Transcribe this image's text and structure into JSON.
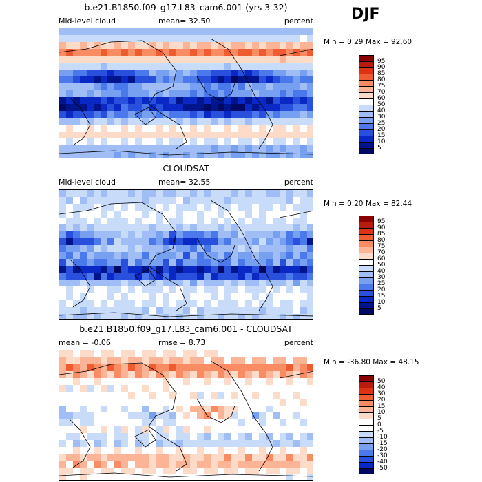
{
  "season": "DJF",
  "panels": [
    {
      "title": "b.e21.B1850.f09_g17.L83_cam6.001 (yrs 3-32)",
      "left_label": "Mid-level cloud",
      "mean_text": "mean=  32.50",
      "units": "percent",
      "minmax": "Min =   0.29 Max =  92.60",
      "colorbar_labels": [
        "95",
        "90",
        "85",
        "80",
        "75",
        "70",
        "60",
        "50",
        "40",
        "30",
        "25",
        "20",
        "15",
        "10",
        "5"
      ],
      "map_kind": "model"
    },
    {
      "title": "CLOUDSAT",
      "left_label": "Mid-level cloud",
      "mean_text": "mean=  32.55",
      "units": "percent",
      "minmax": "Min =   0.20 Max =  82.44",
      "colorbar_labels": [
        "95",
        "90",
        "85",
        "80",
        "75",
        "70",
        "60",
        "50",
        "40",
        "30",
        "25",
        "20",
        "15",
        "10",
        "5"
      ],
      "map_kind": "obs"
    },
    {
      "title": "b.e21.B1850.f09_g17.L83_cam6.001 - CLOUDSAT",
      "left_label": "mean =  -0.06",
      "mean_text": "rmse =   8.73",
      "units": "percent",
      "minmax": "Min = -36.80 Max =  48.15",
      "colorbar_labels": [
        "50",
        "40",
        "30",
        "20",
        "15",
        "10",
        "5",
        "0",
        "-5",
        "-10",
        "-15",
        "-20",
        "-30",
        "-40",
        "-50"
      ],
      "map_kind": "diff"
    }
  ],
  "colors": {
    "seq": [
      "#8b0000",
      "#b81c0c",
      "#de3214",
      "#f05c32",
      "#fa8c64",
      "#fcb496",
      "#fcdcc8",
      "#ffffff",
      "#c8dcfa",
      "#a0bef5",
      "#78a0f0",
      "#4b78eb",
      "#2850dc",
      "#0a28c3",
      "#00148c",
      "#000a64"
    ],
    "div": [
      "#8b0000",
      "#b81c0c",
      "#de3214",
      "#f05c32",
      "#fa8c64",
      "#fcb496",
      "#fcdcc8",
      "#ffffff",
      "#ffffff",
      "#c8dcfa",
      "#a0bef5",
      "#78a0f0",
      "#4b78eb",
      "#2850dc",
      "#0a28c3",
      "#000a64"
    ]
  },
  "chart_data": [
    {
      "type": "heatmap",
      "title": "b.e21.B1850.f09_g17.L83_cam6.001 (yrs 3-32)",
      "variable": "Mid-level cloud",
      "units": "percent",
      "mean": 32.5,
      "min": 0.29,
      "max": 92.6,
      "contour_levels": [
        5,
        10,
        15,
        20,
        25,
        30,
        40,
        50,
        60,
        70,
        75,
        80,
        85,
        90,
        95
      ],
      "x_range_lon": [
        0,
        360
      ],
      "y_range_lat": [
        -90,
        90
      ]
    },
    {
      "type": "heatmap",
      "title": "CLOUDSAT",
      "variable": "Mid-level cloud",
      "units": "percent",
      "mean": 32.55,
      "min": 0.2,
      "max": 82.44,
      "contour_levels": [
        5,
        10,
        15,
        20,
        25,
        30,
        40,
        50,
        60,
        70,
        75,
        80,
        85,
        90,
        95
      ],
      "x_range_lon": [
        0,
        360
      ],
      "y_range_lat": [
        -90,
        90
      ]
    },
    {
      "type": "heatmap",
      "title": "b.e21.B1850.f09_g17.L83_cam6.001 - CLOUDSAT",
      "units": "percent",
      "mean": -0.06,
      "rmse": 8.73,
      "min": -36.8,
      "max": 48.15,
      "contour_levels": [
        -50,
        -40,
        -30,
        -20,
        -15,
        -10,
        -5,
        0,
        5,
        10,
        15,
        20,
        30,
        40,
        50
      ],
      "x_range_lon": [
        0,
        360
      ],
      "y_range_lat": [
        -90,
        90
      ]
    }
  ]
}
